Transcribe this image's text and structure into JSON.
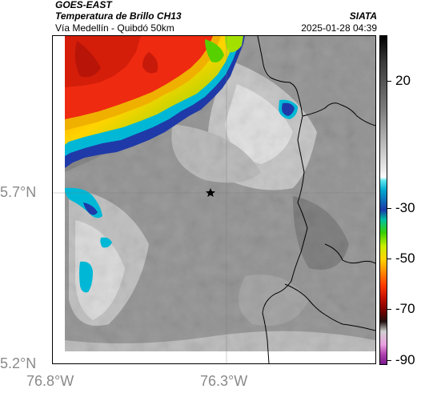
{
  "header": {
    "satellite": "GOES-EAST",
    "product": "Temperatura de Brillo CH13",
    "route": "Vía Medellín - Quibdó 50km",
    "agency": "SIATA",
    "datetime": "2025-01-28 04:39"
  },
  "map": {
    "lat_labels": [
      "5.7°N",
      "5.2°N"
    ],
    "lon_labels": [
      "76.8°W",
      "76.3°W"
    ],
    "marker_icon": "star-icon"
  },
  "colorbar": {
    "labels": [
      "20",
      "-30",
      "-50",
      "-70",
      "-90"
    ],
    "values": [
      20,
      -30,
      -50,
      -70,
      -90
    ],
    "range": [
      -92,
      38
    ]
  }
}
